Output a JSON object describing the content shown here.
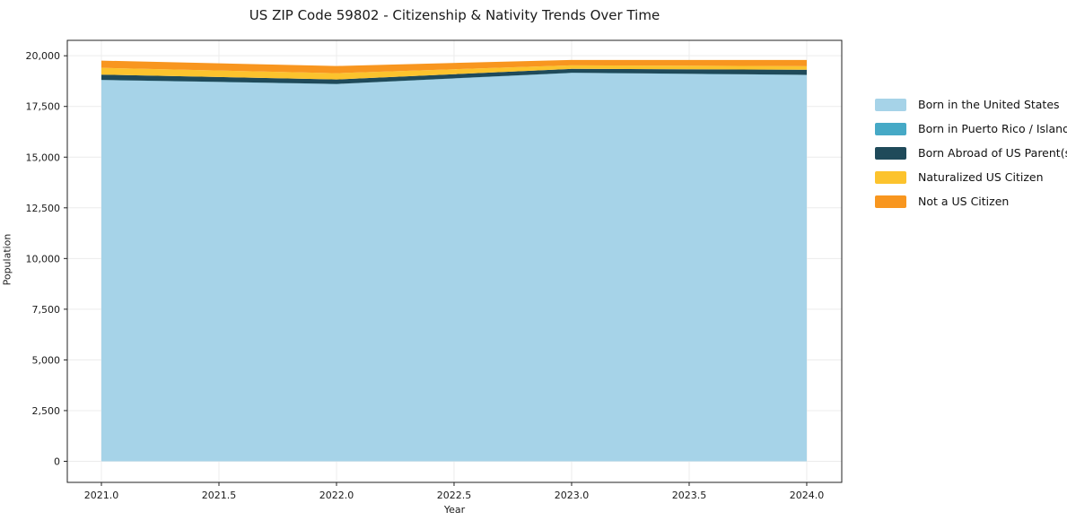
{
  "chart": {
    "title": "US ZIP Code 59802 - Citizenship & Nativity Trends Over Time",
    "xlabel": "Year",
    "ylabel": "Population"
  },
  "legend": {
    "position": "outside-right",
    "items": [
      {
        "label": "Born in the United States",
        "color": "#a6d3e8"
      },
      {
        "label": "Born in Puerto Rico / Islands",
        "color": "#46a9c6"
      },
      {
        "label": "Born Abroad of US Parent(s)",
        "color": "#1f4a5a"
      },
      {
        "label": "Naturalized US Citizen",
        "color": "#fcc32d"
      },
      {
        "label": "Not a US Citizen",
        "color": "#f8961f"
      }
    ]
  },
  "chart_data": {
    "type": "area",
    "stacked": true,
    "title": "US ZIP Code 59802 - Citizenship & Nativity Trends Over Time",
    "xlabel": "Year",
    "ylabel": "Population",
    "x": [
      2021,
      2022,
      2023,
      2024
    ],
    "series": [
      {
        "name": "Born in the United States",
        "color": "#a6d3e8",
        "values": [
          18800,
          18600,
          19150,
          19050
        ]
      },
      {
        "name": "Born in Puerto Rico / Islands",
        "color": "#46a9c6",
        "values": [
          10,
          10,
          10,
          10
        ]
      },
      {
        "name": "Born Abroad of US Parent(s)",
        "color": "#1f4a5a",
        "values": [
          260,
          220,
          195,
          250
        ]
      },
      {
        "name": "Naturalized US Citizen",
        "color": "#fcc32d",
        "values": [
          335,
          310,
          175,
          175
        ]
      },
      {
        "name": "Not a US Citizen",
        "color": "#f8961f",
        "values": [
          355,
          355,
          265,
          310
        ]
      }
    ],
    "totals": [
      19760,
      19495,
      19795,
      19795
    ],
    "xticks": [
      2021.0,
      2021.5,
      2022.0,
      2022.5,
      2023.0,
      2023.5,
      2024.0
    ],
    "xtick_labels": [
      "2021.0",
      "2021.5",
      "2022.0",
      "2022.5",
      "2023.0",
      "2023.5",
      "2024.0"
    ],
    "yticks": [
      0,
      2500,
      5000,
      7500,
      10000,
      12500,
      15000,
      17500,
      20000
    ],
    "ytick_labels": [
      "0",
      "2,500",
      "5,000",
      "7,500",
      "10,000",
      "12,500",
      "15,000",
      "17,500",
      "20,000"
    ],
    "xlim": [
      2020.855,
      2024.149
    ],
    "ylim": [
      -1040,
      20760
    ],
    "grid": true,
    "grid_color": "#ececec",
    "spine_color": "#222222",
    "legend_position": "center-right"
  }
}
